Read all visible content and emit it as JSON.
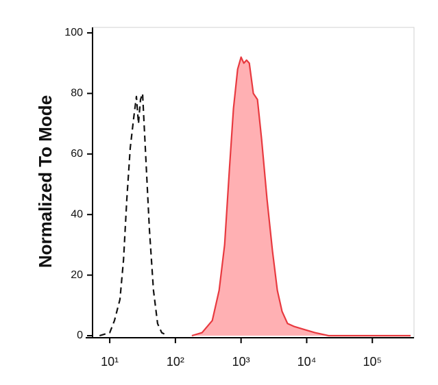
{
  "chart_data": {
    "type": "line",
    "y_label": "Normalized To Mode",
    "x_log": true,
    "xlim": [
      4.3,
      431000
    ],
    "ylim": [
      0,
      100
    ],
    "xticks": [
      {
        "value": 10,
        "label": "10¹"
      },
      {
        "value": 100,
        "label": "10²"
      },
      {
        "value": 1000,
        "label": "10³"
      },
      {
        "value": 10000,
        "label": "10⁴"
      },
      {
        "value": 100000,
        "label": "10⁵"
      }
    ],
    "yticks": [
      0,
      20,
      40,
      60,
      80,
      100
    ],
    "series": [
      {
        "color": "#111111",
        "dashed": true,
        "filled": false,
        "x": [
          6.98,
          10,
          11.8,
          14.3,
          16.2,
          18.2,
          20.5,
          23.2,
          25.5,
          27.4,
          29.4,
          31.6,
          34.8,
          40.2,
          46.4,
          53.6,
          61.9,
          76.7
        ],
        "values": [
          0,
          1,
          5,
          12,
          25,
          45,
          62,
          72,
          79,
          70,
          78,
          80,
          62,
          35,
          15,
          4,
          1,
          0
        ]
      },
      {
        "color": "#e8393f",
        "fill": "#ffb0b3",
        "dashed": false,
        "filled": true,
        "x": [
          178,
          255,
          365,
          464,
          562,
          665,
          767,
          887,
          1000,
          1101,
          1212,
          1334,
          1540,
          1778,
          2054,
          2488,
          3013,
          3566,
          4217,
          5109,
          6494,
          9306,
          13335,
          21544,
          383000
        ],
        "values": [
          0,
          1,
          5,
          15,
          30,
          55,
          75,
          88,
          92,
          90,
          91,
          90,
          80,
          78,
          65,
          45,
          28,
          15,
          8,
          4,
          3,
          2,
          1,
          0,
          0
        ]
      }
    ]
  }
}
